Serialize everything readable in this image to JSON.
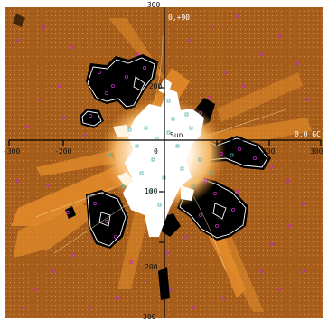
{
  "figure": {
    "colors": {
      "background": "#a85f1c",
      "orange": "#e08a2a",
      "light_orange": "#f2b565",
      "white_core": "#ffffff",
      "black_void": "#000000",
      "contour_line": "#ffffff",
      "magenta_marker": "#c02bbd",
      "cyan_marker": "#4fb3a8",
      "axis": "#000000"
    },
    "labels": {
      "top_tick": "-300",
      "upper_right": "0,+90",
      "right_label": "0,0 GC",
      "left_tick": "-300",
      "right_tick": "300",
      "y_tick_neg200": "-200",
      "x_tick_neg200": "-200",
      "x_tick_0": "0",
      "center_mark": "Sun",
      "y_tick_100": "100",
      "x_tick_200": "200",
      "y_tick_200": "200",
      "bottom_tick": "300"
    }
  }
}
